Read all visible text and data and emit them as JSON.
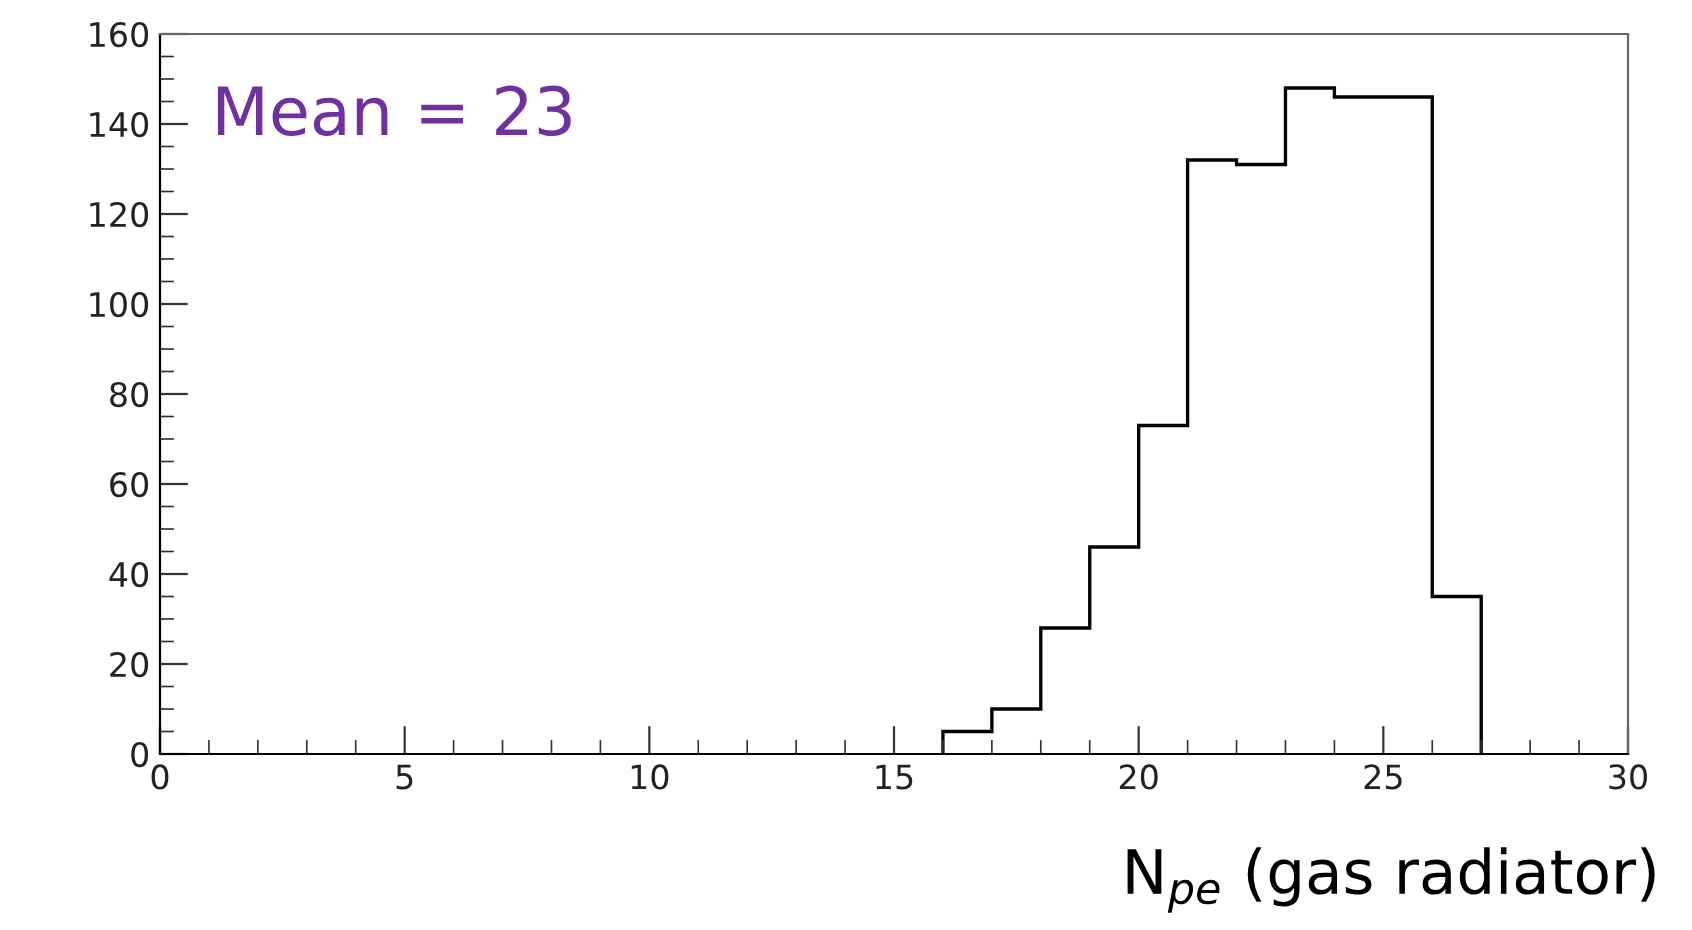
{
  "chart_data": {
    "type": "histogram",
    "xlabel": "N$_{pe}$ (gas radiator)",
    "annotations": [
      "Mean = 23"
    ],
    "bins": [
      16,
      17,
      18,
      19,
      20,
      21,
      22,
      23,
      24,
      25,
      26,
      27
    ],
    "values": [
      5,
      10,
      28,
      46,
      73,
      132,
      131,
      148,
      146,
      146,
      35
    ],
    "color": "#000000",
    "xlim": [
      0,
      30
    ],
    "xticks": [
      0,
      5,
      10,
      15,
      20,
      25,
      30
    ],
    "ylim": [
      0,
      160
    ],
    "yticks": [
      0,
      20,
      40,
      60,
      80,
      100,
      120,
      140,
      160
    ],
    "grid": false
  }
}
